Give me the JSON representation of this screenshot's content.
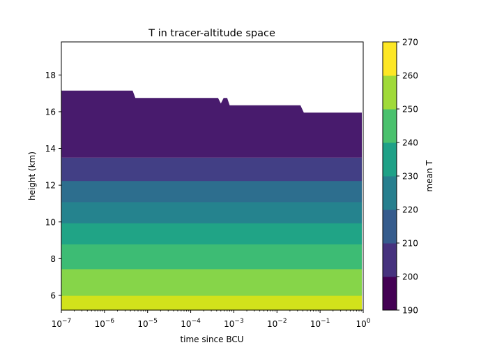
{
  "chart_data": {
    "type": "contourf",
    "title": "T in tracer-altitude space",
    "xlabel": "time since BCU",
    "ylabel": "height (km)",
    "x_scale": "log",
    "xlim": [
      1e-07,
      1
    ],
    "ylim": [
      5.2,
      19.8
    ],
    "x_ticks": [
      {
        "value": 1e-07,
        "base": "10",
        "exp": "−7"
      },
      {
        "value": 1e-06,
        "base": "10",
        "exp": "−6"
      },
      {
        "value": 1e-05,
        "base": "10",
        "exp": "−5"
      },
      {
        "value": 0.0001,
        "base": "10",
        "exp": "−4"
      },
      {
        "value": 0.001,
        "base": "10",
        "exp": "−3"
      },
      {
        "value": 0.01,
        "base": "10",
        "exp": "−2"
      },
      {
        "value": 0.1,
        "base": "10",
        "exp": "−1"
      },
      {
        "value": 1,
        "base": "10",
        "exp": "0"
      }
    ],
    "y_ticks": [
      6,
      8,
      10,
      12,
      14,
      16,
      18
    ],
    "colorbar": {
      "label": "mean T",
      "levels": [
        190,
        200,
        210,
        220,
        230,
        240,
        250,
        260,
        270
      ],
      "colors": [
        "#440154",
        "#46327e",
        "#365c8d",
        "#277f8e",
        "#1fa187",
        "#4ac16d",
        "#a0da39",
        "#fde725"
      ]
    },
    "bands": [
      {
        "range": "260-270",
        "color": "#d2e21b",
        "y_low": 5.2,
        "y_high": 6.0
      },
      {
        "range": "250-260",
        "color": "#86d549",
        "y_low": 6.0,
        "y_high": 7.45
      },
      {
        "range": "240-250",
        "color": "#3dbc74",
        "y_low": 7.45,
        "y_high": 8.8
      },
      {
        "range": "230-240",
        "color": "#20a486",
        "y_low": 8.8,
        "y_high": 9.95
      },
      {
        "range": "220-230",
        "color": "#25838e",
        "y_low": 9.95,
        "y_high": 11.1
      },
      {
        "range": "210-220",
        "color": "#2d6e8e",
        "y_low": 11.1,
        "y_high": 12.25
      },
      {
        "range": "200-210",
        "color": "#423f85",
        "y_low": 12.25,
        "y_high": 13.5
      },
      {
        "range": "190-200",
        "color": "#481b6d",
        "y_low": 13.5,
        "y_high": "top_profile"
      }
    ],
    "top_profile": [
      {
        "x": 1e-07,
        "y": 17.15
      },
      {
        "x": 4.5e-06,
        "y": 17.15
      },
      {
        "x": 5.2e-06,
        "y": 16.75
      },
      {
        "x": 0.00043,
        "y": 16.75
      },
      {
        "x": 0.0005,
        "y": 16.45
      },
      {
        "x": 0.00058,
        "y": 16.75
      },
      {
        "x": 0.0007,
        "y": 16.75
      },
      {
        "x": 0.0008,
        "y": 16.35
      },
      {
        "x": 0.035,
        "y": 16.35
      },
      {
        "x": 0.042,
        "y": 15.95
      },
      {
        "x": 1,
        "y": 15.95
      }
    ],
    "grid": false,
    "legend": "colorbar-right"
  }
}
